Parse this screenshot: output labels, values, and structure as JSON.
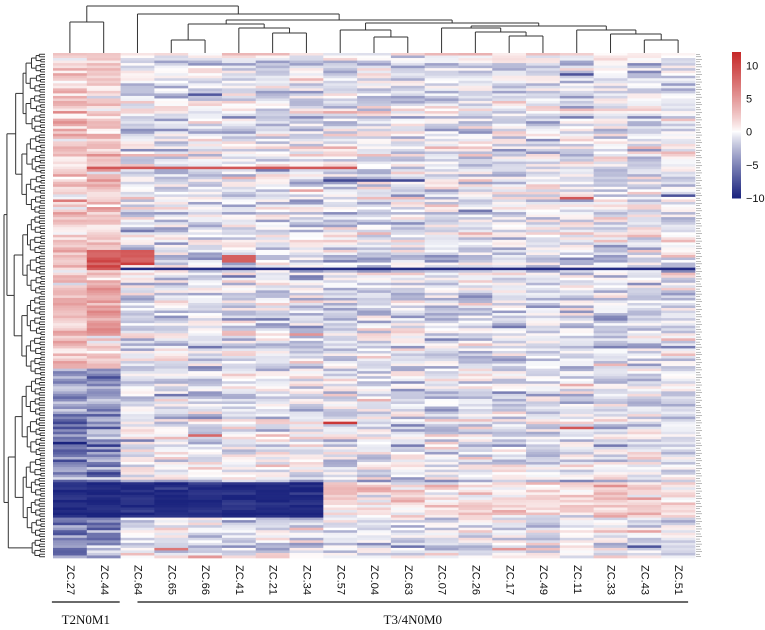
{
  "chart_data": {
    "type": "heatmap",
    "title": "",
    "columns": [
      "ZC.27",
      "ZC.44",
      "ZC.64",
      "ZC.65",
      "ZC.66",
      "ZC.41",
      "ZC.21",
      "ZC.34",
      "ZC.57",
      "ZC.04",
      "ZC.63",
      "ZC.07",
      "ZC.26",
      "ZC.17",
      "ZC.49",
      "ZC.11",
      "ZC.33",
      "ZC.43",
      "ZC.51"
    ],
    "row_count": 200,
    "groups": [
      {
        "label": "T2N0M1",
        "columns": [
          "ZC.27",
          "ZC.44"
        ]
      },
      {
        "label": "T3/4N0M0",
        "columns": [
          "ZC.64",
          "ZC.65",
          "ZC.66",
          "ZC.41",
          "ZC.21",
          "ZC.34",
          "ZC.57",
          "ZC.04",
          "ZC.63",
          "ZC.07",
          "ZC.26",
          "ZC.17",
          "ZC.49",
          "ZC.11",
          "ZC.33",
          "ZC.43",
          "ZC.51"
        ]
      }
    ],
    "colorbar": {
      "range": [
        -10,
        12
      ],
      "ticks": [
        -10,
        -5,
        0,
        5,
        10
      ],
      "tick_labels": [
        "−10",
        "−5",
        "0",
        "5",
        "10"
      ],
      "low_color": "#1a237e",
      "mid_color": "#ffffff",
      "high_color": "#c62828"
    },
    "column_dendrogram": true,
    "row_dendrogram": true,
    "row_labels_legible": false
  }
}
